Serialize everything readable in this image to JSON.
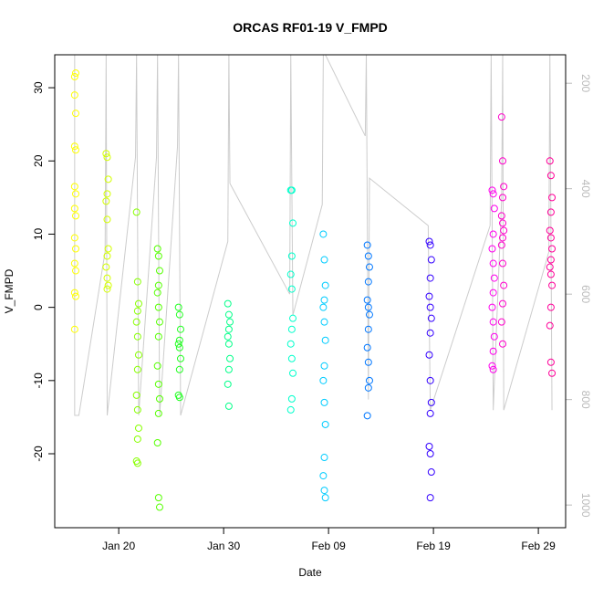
{
  "chart_data": {
    "type": "scatter",
    "title": "ORCAS RF01-19 V_FMPD",
    "xlabel": "Date",
    "ylabel": "V_FMPD",
    "xlim": [
      13.9,
      62.6
    ],
    "xticks": [
      {
        "value": 20,
        "label": "Jan 20"
      },
      {
        "value": 30,
        "label": "Jan 30"
      },
      {
        "value": 40,
        "label": "Feb 09"
      },
      {
        "value": 50,
        "label": "Feb 19"
      },
      {
        "value": 60,
        "label": "Feb 29"
      }
    ],
    "ylim": [
      -30.1,
      34.5
    ],
    "yticks": [
      -20,
      -10,
      0,
      10,
      20,
      30
    ],
    "y2lim": [
      1043,
      146
    ],
    "y2ticks": [
      200,
      400,
      600,
      800,
      1000
    ],
    "series": [
      {
        "color": "#cccccc",
        "axis": "y2",
        "x": [
          15.8,
          15.8,
          16.2,
          18.7,
          18.8,
          18.9,
          21.6,
          21.7,
          21.9,
          23.6,
          23.7,
          23.9,
          25.6,
          25.7,
          25.9,
          30.4,
          30.5,
          30.6,
          36.3,
          36.4,
          36.6,
          39.4,
          39.5,
          39.7,
          43.5,
          43.6,
          43.8,
          43.9,
          49.5,
          49.7,
          55.4,
          55.5,
          55.7,
          56.5,
          56.6,
          56.7,
          61.0,
          61.1,
          61.3
        ],
        "values": [
          146,
          830,
          830,
          520,
          146,
          830,
          340,
          146,
          830,
          340,
          146,
          830,
          320,
          146,
          830,
          500,
          146,
          390,
          600,
          146,
          640,
          430,
          146,
          146,
          300,
          146,
          800,
          380,
          470,
          820,
          470,
          146,
          820,
          420,
          146,
          820,
          520,
          146,
          820
        ]
      },
      {
        "color": "#ffff00",
        "x": [
          15.8,
          15.9,
          15.8,
          15.9,
          15.8,
          15.9,
          15.8,
          15.9,
          15.8,
          15.9,
          15.8,
          15.9,
          15.8,
          15.9,
          15.8,
          15.9,
          15.8
        ],
        "values": [
          31.5,
          32,
          29,
          26.5,
          22,
          21.5,
          16.5,
          15.5,
          13.5,
          12.5,
          9.5,
          8,
          6,
          5,
          2,
          1.5,
          -3
        ]
      },
      {
        "color": "#d4ff00",
        "x": [
          18.8,
          18.9,
          19.0,
          18.9,
          18.8,
          18.9,
          19.0,
          18.9,
          18.8,
          18.9,
          19.0,
          18.9
        ],
        "values": [
          21,
          20.5,
          17.5,
          15.5,
          14.5,
          12,
          8,
          7,
          5.5,
          4,
          3,
          2.5
        ]
      },
      {
        "color": "#88ff00",
        "x": [
          21.7,
          21.8,
          21.9,
          21.8,
          21.7,
          21.8,
          21.9,
          21.8,
          21.7,
          21.8,
          21.9,
          21.8,
          21.7,
          21.8
        ],
        "values": [
          13,
          3.5,
          0.5,
          -0.5,
          -2,
          -4,
          -6.5,
          -8.5,
          -12,
          -14,
          -16.5,
          -18,
          -21,
          -21.3
        ]
      },
      {
        "color": "#55ff00",
        "x": [
          23.7,
          23.8,
          23.9,
          23.8,
          23.7,
          23.8,
          23.9,
          23.8,
          23.7,
          23.8,
          23.9,
          23.8,
          23.7,
          23.8,
          23.9
        ],
        "values": [
          8,
          7,
          5,
          3,
          2,
          0,
          -2,
          -4,
          -8,
          -10.5,
          -12.5,
          -14.5,
          -18.5,
          -26,
          -27.3
        ]
      },
      {
        "color": "#22ff22",
        "x": [
          25.7,
          25.8,
          25.9,
          25.8,
          25.7,
          25.8,
          25.9,
          25.8,
          25.7,
          25.8
        ],
        "values": [
          0,
          -1,
          -3,
          -4.5,
          -5,
          -5.5,
          -7,
          -8.5,
          -12,
          -12.3
        ]
      },
      {
        "color": "#00ff88",
        "x": [
          30.4,
          30.5,
          30.6,
          30.5,
          30.4,
          30.5,
          30.6,
          30.5,
          30.4,
          30.5
        ],
        "values": [
          0.5,
          -1,
          -2,
          -3,
          -4,
          -5,
          -7,
          -8.5,
          -10.5,
          -13.5
        ]
      },
      {
        "color": "#00ffcc",
        "x": [
          36.4,
          36.5,
          36.6,
          36.5,
          36.4,
          36.5,
          36.6,
          36.5,
          36.4,
          36.5,
          36.6,
          36.5,
          36.4
        ],
        "values": [
          16,
          16,
          11.5,
          7,
          4.5,
          2.5,
          -1.5,
          -3,
          -5,
          -7,
          -9,
          -12.5,
          -14
        ]
      },
      {
        "color": "#00ccff",
        "x": [
          39.5,
          39.6,
          39.7,
          39.6,
          39.5,
          39.6,
          39.7,
          39.6,
          39.5,
          39.6,
          39.7,
          39.6,
          39.5,
          39.6,
          39.7
        ],
        "values": [
          10,
          6.5,
          3,
          1,
          0,
          -2,
          -4.5,
          -8,
          -10,
          -13,
          -16,
          -20.5,
          -23,
          -25,
          -26
        ]
      },
      {
        "color": "#0077ff",
        "x": [
          43.7,
          43.8,
          43.9,
          43.8,
          43.7,
          43.8,
          43.9,
          43.8,
          43.7,
          43.8,
          43.9,
          43.8,
          43.7
        ],
        "values": [
          8.5,
          7,
          5.5,
          3.5,
          1,
          0,
          -1,
          -3,
          -5.5,
          -7.5,
          -10,
          -11,
          -14.8
        ]
      },
      {
        "color": "#3300ff",
        "x": [
          49.6,
          49.7,
          49.8,
          49.7,
          49.6,
          49.7,
          49.8,
          49.7,
          49.6,
          49.7,
          49.8,
          49.7,
          49.6,
          49.7,
          49.8,
          49.7
        ],
        "values": [
          9,
          8.5,
          6.5,
          4,
          1.5,
          0,
          -1.5,
          -3.5,
          -6.5,
          -10,
          -13,
          -14.5,
          -19,
          -20,
          -22.5,
          -26
        ]
      },
      {
        "color": "#ff00ee",
        "x": [
          55.6,
          55.7,
          55.8,
          55.7,
          55.6,
          55.7,
          55.8,
          55.7,
          55.6,
          55.7,
          55.8,
          55.7,
          55.6,
          55.7
        ],
        "values": [
          16,
          15.5,
          13.5,
          10,
          8,
          6,
          4,
          2,
          0,
          -2,
          -4,
          -6,
          -8,
          -8.5
        ]
      },
      {
        "color": "#ff00cc",
        "x": [
          56.5,
          56.6,
          56.7,
          56.6,
          56.5,
          56.6,
          56.7,
          56.6,
          56.5,
          56.6,
          56.7,
          56.6,
          56.5,
          56.6
        ],
        "values": [
          26,
          20,
          16.5,
          15,
          12.5,
          11.5,
          10.5,
          9.5,
          8.5,
          6,
          3,
          0.5,
          -2,
          -5
        ]
      },
      {
        "color": "#ff0099",
        "x": [
          61.1,
          61.2,
          61.3,
          61.2,
          61.1,
          61.2,
          61.3,
          61.2,
          61.1,
          61.2,
          61.3,
          61.2,
          61.1,
          61.2,
          61.3
        ],
        "values": [
          20,
          18,
          15,
          13,
          10.5,
          9.5,
          8,
          6.5,
          5.5,
          4.5,
          3,
          0,
          -2.5,
          -7.5,
          -9
        ]
      }
    ]
  }
}
